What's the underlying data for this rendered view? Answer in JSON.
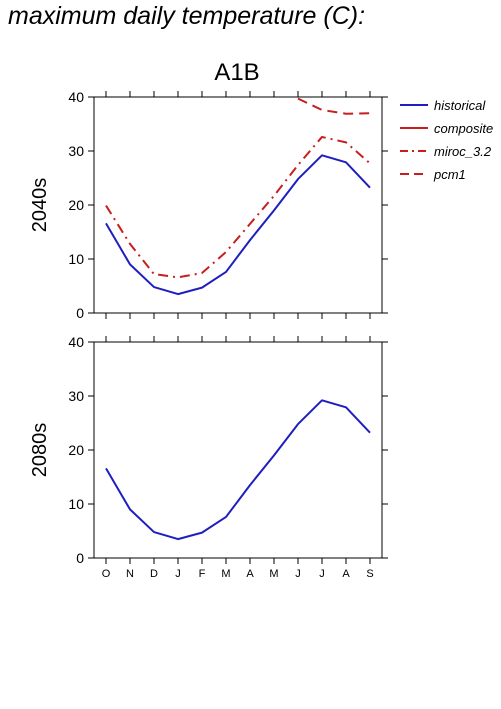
{
  "page": {
    "title": "maximum daily temperature (C):"
  },
  "chart_data": {
    "type": "line",
    "title": "A1B",
    "categories": [
      "O",
      "N",
      "D",
      "J",
      "F",
      "M",
      "A",
      "M",
      "J",
      "J",
      "A",
      "S"
    ],
    "ylim": [
      0,
      40
    ],
    "yticks": [
      0,
      10,
      20,
      30,
      40
    ],
    "grid": false,
    "legend_position": "right",
    "legend": [
      {
        "name": "historical",
        "color": "#1f1fbf",
        "style": "solid"
      },
      {
        "name": "composite",
        "color": "#c81e1e",
        "style": "solid"
      },
      {
        "name": "miroc_3.2",
        "color": "#c81e1e",
        "style": "dashdot"
      },
      {
        "name": "pcm1",
        "color": "#c81e1e",
        "style": "dashed"
      }
    ],
    "panels": [
      {
        "row_label": "2040s",
        "series": [
          {
            "name": "historical",
            "values": [
              16.6,
              9.0,
              4.8,
              3.5,
              4.7,
              7.6,
              13.5,
              19.0,
              24.8,
              29.2,
              27.9,
              23.2
            ]
          },
          {
            "name": "miroc_3.2",
            "values": [
              19.9,
              12.8,
              7.2,
              6.6,
              7.4,
              11.3,
              16.5,
              21.7,
              27.4,
              32.6,
              31.6,
              27.7
            ]
          },
          {
            "name": "pcm1",
            "values": [
              null,
              null,
              null,
              null,
              null,
              null,
              null,
              null,
              39.7,
              37.6,
              36.9,
              37.0
            ]
          }
        ]
      },
      {
        "row_label": "2080s",
        "series": [
          {
            "name": "historical",
            "values": [
              16.6,
              9.0,
              4.8,
              3.5,
              4.7,
              7.6,
              13.5,
              19.0,
              24.8,
              29.2,
              27.9,
              23.2
            ]
          }
        ]
      }
    ]
  }
}
